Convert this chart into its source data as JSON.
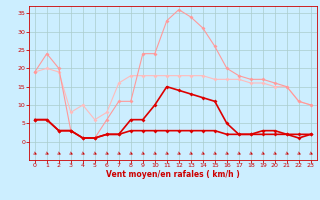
{
  "x": [
    0,
    1,
    2,
    3,
    4,
    5,
    6,
    7,
    8,
    9,
    10,
    11,
    12,
    13,
    14,
    15,
    16,
    17,
    18,
    19,
    20,
    21,
    22,
    23
  ],
  "line1": [
    19,
    24,
    20,
    3,
    1,
    1,
    6,
    11,
    11,
    24,
    24,
    33,
    36,
    34,
    31,
    26,
    20,
    18,
    17,
    17,
    16,
    15,
    11,
    10
  ],
  "line2": [
    19,
    20,
    19,
    8,
    10,
    6,
    8,
    16,
    18,
    18,
    18,
    18,
    18,
    18,
    18,
    17,
    17,
    17,
    16,
    16,
    15,
    15,
    11,
    10
  ],
  "line3": [
    6,
    6,
    3,
    3,
    1,
    1,
    2,
    2,
    6,
    6,
    10,
    15,
    14,
    13,
    12,
    11,
    5,
    2,
    2,
    3,
    3,
    2,
    1,
    2
  ],
  "line4": [
    6,
    6,
    3,
    3,
    1,
    1,
    2,
    2,
    3,
    3,
    3,
    3,
    3,
    3,
    3,
    3,
    2,
    2,
    2,
    2,
    2,
    2,
    2,
    2
  ],
  "bg_color": "#cceeff",
  "grid_color": "#aacccc",
  "line1_color": "#ff9999",
  "line2_color": "#ffbbbb",
  "line3_color": "#dd0000",
  "line4_color": "#dd0000",
  "arrow_color": "#cc0000",
  "xlabel": "Vent moyen/en rafales ( km/h )",
  "ylim": [
    -5,
    37
  ],
  "xlim": [
    -0.5,
    23.5
  ],
  "yticks": [
    0,
    5,
    10,
    15,
    20,
    25,
    30,
    35
  ],
  "xticks": [
    0,
    1,
    2,
    3,
    4,
    5,
    6,
    7,
    8,
    9,
    10,
    11,
    12,
    13,
    14,
    15,
    16,
    17,
    18,
    19,
    20,
    21,
    22,
    23
  ],
  "tick_color": "#cc0000",
  "label_color": "#cc0000"
}
